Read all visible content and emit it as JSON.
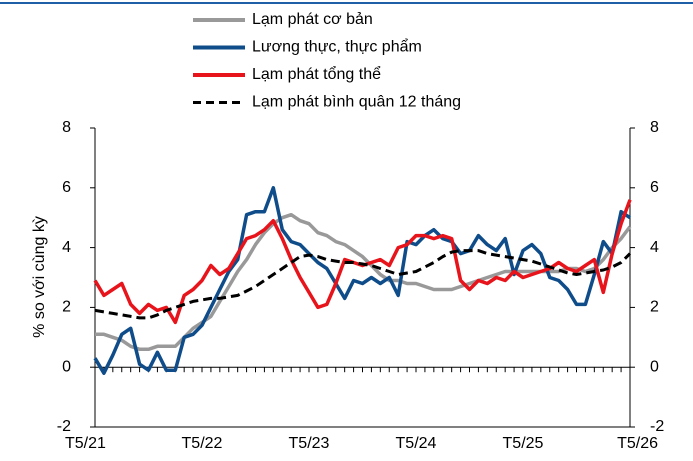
{
  "chart_data": {
    "type": "line",
    "ylabel": "% so với cùng kỳ",
    "categories": [
      "T5/21",
      null,
      null,
      null,
      null,
      null,
      null,
      null,
      null,
      null,
      null,
      null,
      "T5/22",
      null,
      null,
      null,
      null,
      null,
      null,
      null,
      null,
      null,
      null,
      null,
      "T5/23",
      null,
      null,
      null,
      null,
      null,
      null,
      null,
      null,
      null,
      null,
      null,
      "T5/24",
      null,
      null,
      null,
      null,
      null,
      null,
      null,
      null,
      null,
      null,
      null,
      "T5/25",
      null,
      null,
      null,
      null,
      null,
      null,
      null,
      null,
      null,
      null,
      null,
      "T5/26"
    ],
    "series": [
      {
        "name": "Lạm phát cơ bản",
        "color": "#999999",
        "dash": false,
        "values": [
          1.1,
          1.1,
          1.0,
          0.9,
          0.7,
          0.6,
          0.6,
          0.7,
          0.7,
          0.7,
          1.0,
          1.3,
          1.5,
          1.7,
          2.2,
          2.7,
          3.2,
          3.6,
          4.1,
          4.5,
          4.8,
          5.0,
          5.1,
          4.9,
          4.8,
          4.5,
          4.4,
          4.2,
          4.1,
          3.9,
          3.7,
          3.4,
          3.1,
          2.9,
          2.9,
          2.8,
          2.8,
          2.7,
          2.6,
          2.6,
          2.6,
          2.7,
          2.8,
          2.9,
          3.0,
          3.1,
          3.2,
          3.2,
          3.2,
          3.2,
          3.2,
          3.2,
          3.2,
          3.3,
          3.3,
          3.2,
          3.3,
          3.6,
          4.0,
          4.3,
          4.7
        ]
      },
      {
        "name": "Lương thực, thực phẩm",
        "color": "#0f4c8a",
        "dash": false,
        "values": [
          0.3,
          -0.2,
          0.4,
          1.1,
          1.3,
          0.1,
          -0.1,
          0.5,
          -0.1,
          -0.1,
          1.0,
          1.1,
          1.4,
          2.0,
          2.6,
          3.2,
          3.6,
          5.1,
          5.2,
          5.2,
          6.0,
          4.6,
          4.2,
          4.1,
          3.8,
          3.5,
          3.3,
          2.8,
          2.3,
          2.9,
          2.8,
          3.0,
          2.8,
          3.0,
          2.4,
          4.2,
          4.1,
          4.4,
          4.6,
          4.3,
          4.2,
          3.8,
          3.9,
          4.4,
          4.1,
          3.9,
          4.3,
          3.1,
          3.9,
          4.1,
          3.8,
          3.0,
          2.9,
          2.6,
          2.1,
          2.1,
          3.1,
          4.2,
          3.8,
          5.2,
          5.0
        ]
      },
      {
        "name": "Lạm phát tổng thể",
        "color": "#e8141b",
        "dash": false,
        "values": [
          2.9,
          2.4,
          2.6,
          2.8,
          2.1,
          1.8,
          2.1,
          1.9,
          2.0,
          1.5,
          2.4,
          2.6,
          2.9,
          3.4,
          3.1,
          3.3,
          3.8,
          4.3,
          4.4,
          4.6,
          4.9,
          4.3,
          3.6,
          3.0,
          2.5,
          2.0,
          2.1,
          2.8,
          3.6,
          3.5,
          3.4,
          3.5,
          3.6,
          3.4,
          4.0,
          4.1,
          4.4,
          4.4,
          4.3,
          4.4,
          4.3,
          2.9,
          2.6,
          2.9,
          2.8,
          3.0,
          2.9,
          3.2,
          3.0,
          3.1,
          3.2,
          3.3,
          3.5,
          3.3,
          3.2,
          3.4,
          3.6,
          2.5,
          3.8,
          4.8,
          5.6
        ]
      },
      {
        "name": "Lạm phát bình quân 12 tháng",
        "color": "#000000",
        "dash": true,
        "values": [
          1.9,
          1.85,
          1.8,
          1.75,
          1.7,
          1.65,
          1.65,
          1.75,
          1.9,
          2.0,
          2.1,
          2.2,
          2.25,
          2.3,
          2.3,
          2.35,
          2.4,
          2.55,
          2.7,
          2.9,
          3.1,
          3.3,
          3.5,
          3.7,
          3.75,
          3.7,
          3.6,
          3.55,
          3.5,
          3.5,
          3.45,
          3.4,
          3.3,
          3.2,
          3.1,
          3.15,
          3.2,
          3.35,
          3.5,
          3.7,
          3.85,
          3.9,
          3.9,
          3.9,
          3.8,
          3.75,
          3.7,
          3.65,
          3.6,
          3.55,
          3.45,
          3.35,
          3.25,
          3.15,
          3.1,
          3.15,
          3.2,
          3.25,
          3.35,
          3.5,
          3.8
        ]
      }
    ],
    "ylim": [
      -2,
      8
    ],
    "yticks": [
      -2,
      0,
      2,
      4,
      6,
      8
    ],
    "y2lim": [
      -2,
      8
    ],
    "y2ticks": [
      -2,
      0,
      2,
      4,
      6,
      8
    ],
    "legend": "top"
  }
}
